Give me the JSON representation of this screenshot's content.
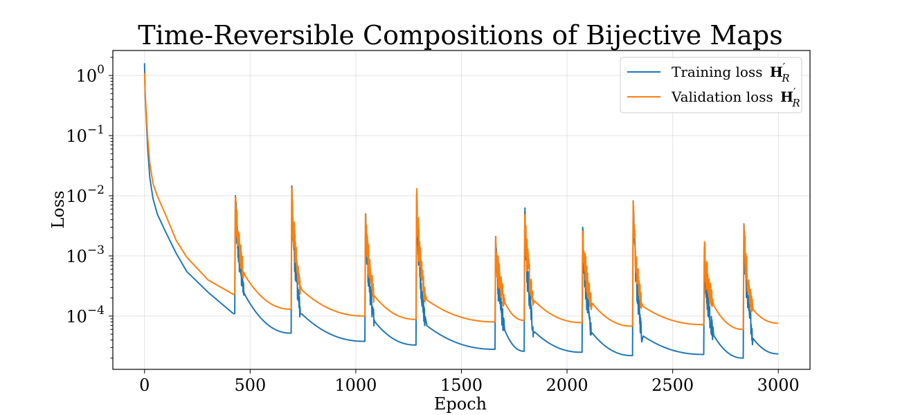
{
  "chart_data": {
    "type": "line",
    "title": "Time-Reversible Compositions of Bijective Maps",
    "xlabel": "Epoch",
    "ylabel": "Loss",
    "xlim": [
      -150,
      3150
    ],
    "ylim": [
      1.3e-05,
      2.6
    ],
    "yscale": "log",
    "grid": true,
    "legend_position": "top-right",
    "x_ticks": [
      0,
      500,
      1000,
      1500,
      2000,
      2500,
      3000
    ],
    "y_ticks": [
      {
        "value": 0.0001,
        "base": "10",
        "exp": "−4"
      },
      {
        "value": 0.001,
        "base": "10",
        "exp": "−3"
      },
      {
        "value": 0.01,
        "base": "10",
        "exp": "−2"
      },
      {
        "value": 0.1,
        "base": "10",
        "exp": "−1"
      },
      {
        "value": 1,
        "base": "10",
        "exp": "0"
      }
    ],
    "series": [
      {
        "name": "Training loss H′_R",
        "legend_main": "Training loss ",
        "legend_symbol": "H",
        "legend_prime": "′",
        "legend_sub": "R",
        "color": "#1f77b4",
        "start": {
          "x": 0,
          "y": 1.6
        },
        "initial_decay": [
          [
            3,
            0.45
          ],
          [
            8,
            0.2
          ],
          [
            15,
            0.06
          ],
          [
            25,
            0.02
          ],
          [
            40,
            0.009
          ],
          [
            60,
            0.005
          ],
          [
            100,
            0.0025
          ],
          [
            150,
            0.0011
          ],
          [
            200,
            0.00055
          ],
          [
            300,
            0.00025
          ],
          [
            420,
            0.00011
          ]
        ],
        "spikes": [
          {
            "x": 430,
            "peak": 0.01,
            "base": 0.00011,
            "end": 5.2e-05
          },
          {
            "x": 697,
            "peak": 0.0145,
            "base": 5.2e-05,
            "end": 3.8e-05
          },
          {
            "x": 1046,
            "peak": 0.005,
            "base": 3.8e-05,
            "end": 3.3e-05
          },
          {
            "x": 1288,
            "peak": 0.0105,
            "base": 3.3e-05,
            "end": 2.8e-05
          },
          {
            "x": 1662,
            "peak": 0.0021,
            "base": 2.8e-05,
            "end": 2.6e-05
          },
          {
            "x": 1800,
            "peak": 0.005,
            "base": 2.6e-05,
            "end": 2.5e-05
          },
          {
            "x": 2074,
            "peak": 0.003,
            "base": 2.5e-05,
            "end": 2.2e-05
          },
          {
            "x": 2313,
            "peak": 0.0082,
            "base": 2.2e-05,
            "end": 2.3e-05
          },
          {
            "x": 2650,
            "peak": 0.0014,
            "base": 2.3e-05,
            "end": 2e-05
          },
          {
            "x": 2837,
            "peak": 0.0034,
            "base": 2e-05,
            "end": 2.35e-05
          }
        ],
        "end_x": 3000
      },
      {
        "name": "Validation loss H′_R",
        "legend_main": "Validation loss ",
        "legend_symbol": "H",
        "legend_prime": "′",
        "legend_sub": "R",
        "color": "#ff7f0e",
        "start": {
          "x": 0,
          "y": 1.1
        },
        "initial_decay": [
          [
            3,
            0.5
          ],
          [
            8,
            0.25
          ],
          [
            15,
            0.09
          ],
          [
            25,
            0.035
          ],
          [
            40,
            0.016
          ],
          [
            60,
            0.01
          ],
          [
            100,
            0.0048
          ],
          [
            150,
            0.0018
          ],
          [
            200,
            0.00095
          ],
          [
            300,
            0.0004
          ],
          [
            420,
            0.00023
          ]
        ],
        "spikes": [
          {
            "x": 430,
            "peak": 0.0095,
            "base": 0.00023,
            "end": 0.00013
          },
          {
            "x": 697,
            "peak": 0.0135,
            "base": 0.00013,
            "end": 0.0001
          },
          {
            "x": 1046,
            "peak": 0.0045,
            "base": 0.0001,
            "end": 8.8e-05
          },
          {
            "x": 1288,
            "peak": 0.0098,
            "base": 8.8e-05,
            "end": 8e-05
          },
          {
            "x": 1662,
            "peak": 0.0019,
            "base": 8e-05,
            "end": 8.5e-05
          },
          {
            "x": 1800,
            "peak": 0.0048,
            "base": 8.5e-05,
            "end": 7.8e-05
          },
          {
            "x": 2074,
            "peak": 0.0026,
            "base": 7.8e-05,
            "end": 6.8e-05
          },
          {
            "x": 2313,
            "peak": 0.008,
            "base": 6.8e-05,
            "end": 7.2e-05
          },
          {
            "x": 2650,
            "peak": 0.0013,
            "base": 7.2e-05,
            "end": 6e-05
          },
          {
            "x": 2837,
            "peak": 0.0033,
            "base": 6e-05,
            "end": 7.6e-05
          }
        ],
        "end_x": 3000
      }
    ]
  }
}
